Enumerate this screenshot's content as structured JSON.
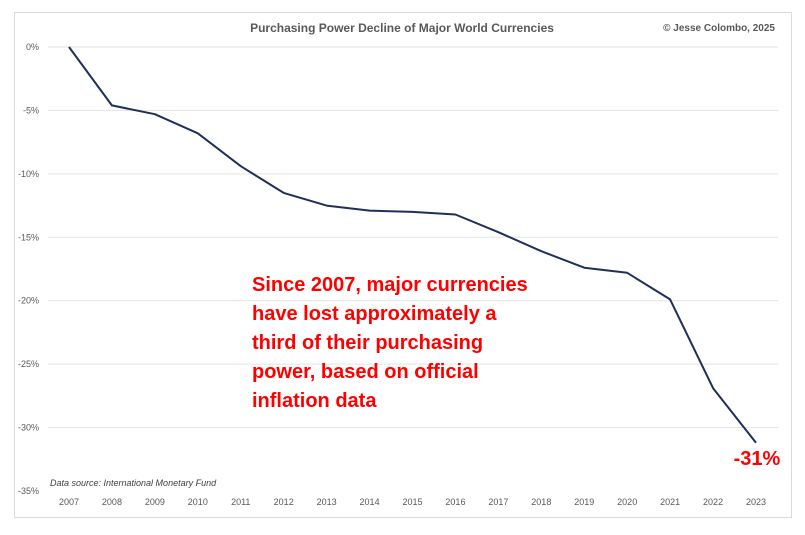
{
  "chart_data": {
    "type": "line",
    "title": "Purchasing Power Decline of Major World Currencies",
    "credit": "© Jesse Colombo, 2025",
    "source": "Data source: International Monetary Fund",
    "annotation_lines": [
      "Since 2007, major currencies",
      "have lost approximately a",
      "third of their purchasing",
      "power, based on official",
      "inflation data"
    ],
    "end_label": "-31%",
    "end_label_color": "#ff0000",
    "line_color": "#1f2f5a",
    "grid": true,
    "ylim": [
      -35,
      0
    ],
    "yticks": [
      0,
      -5,
      -10,
      -15,
      -20,
      -25,
      -30,
      -35
    ],
    "ytick_labels": [
      "0%",
      "-5%",
      "-10%",
      "-15%",
      "-20%",
      "-25%",
      "-30%",
      "-35%"
    ],
    "x": [
      "2007",
      "2008",
      "2009",
      "2010",
      "2011",
      "2012",
      "2013",
      "2014",
      "2015",
      "2016",
      "2017",
      "2018",
      "2019",
      "2020",
      "2021",
      "2022",
      "2023"
    ],
    "values": [
      0,
      -4.6,
      -5.3,
      -6.8,
      -9.4,
      -11.5,
      -12.5,
      -12.9,
      -13.0,
      -13.2,
      -14.6,
      -16.1,
      -17.4,
      -17.8,
      -19.9,
      -26.9,
      -31.2
    ]
  }
}
